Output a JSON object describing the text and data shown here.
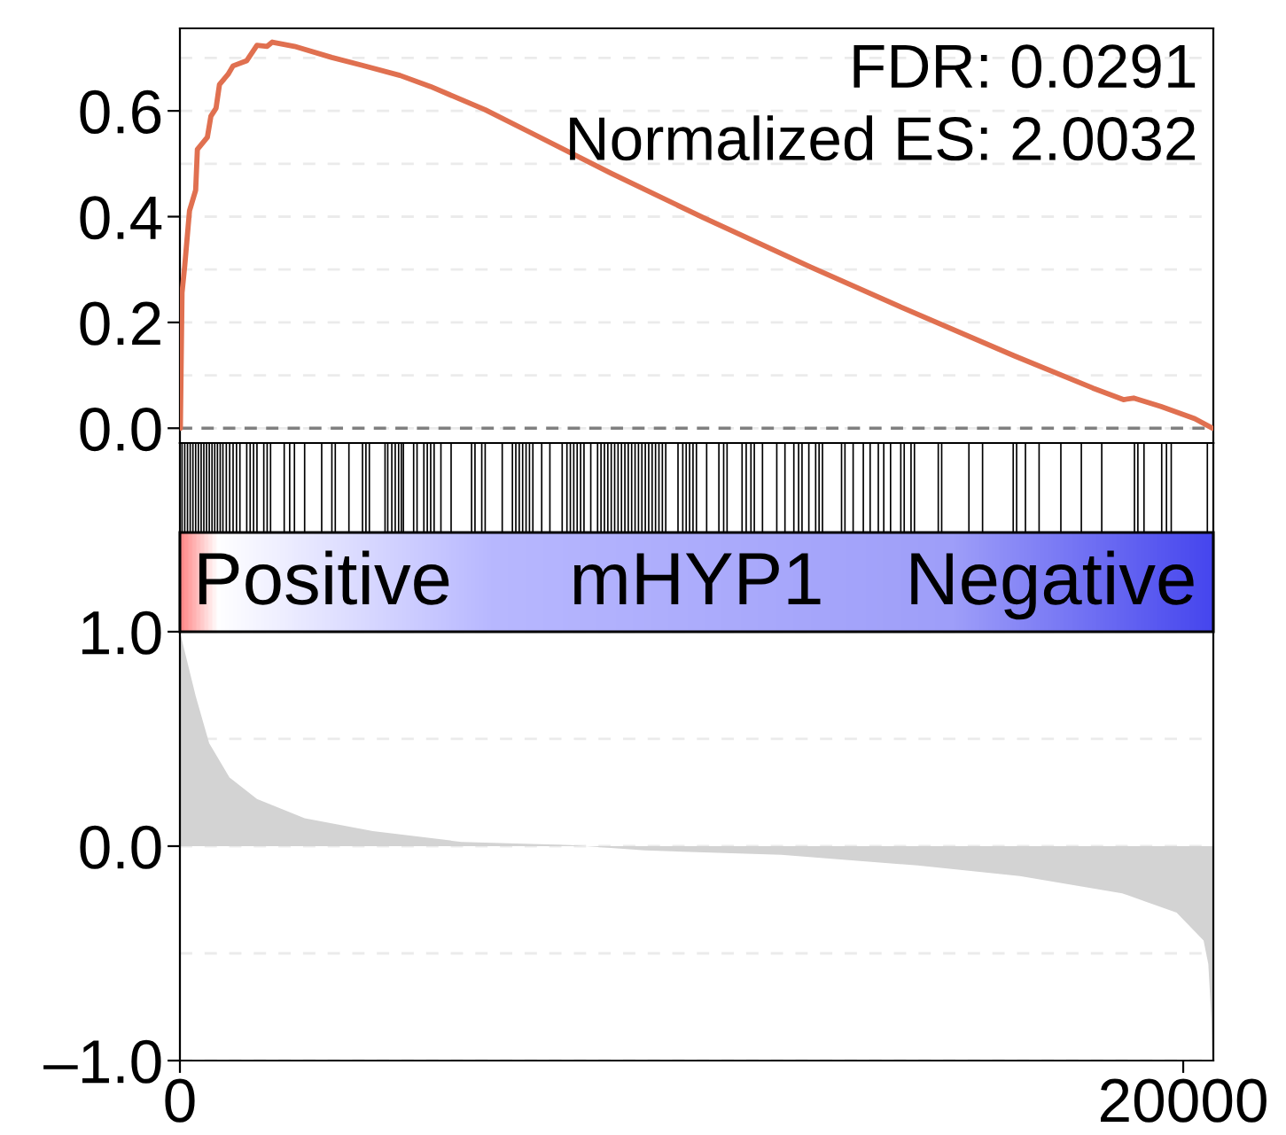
{
  "chart_data": [
    {
      "type": "line",
      "xlim": [
        0,
        20600
      ],
      "ylim": [
        -0.028,
        0.756
      ],
      "yticks": [
        {
          "value": 0,
          "label": "0.0"
        },
        {
          "value": 0.1,
          "label": null
        },
        {
          "value": 0.2,
          "label": "0.2"
        },
        {
          "value": 0.3,
          "label": null
        },
        {
          "value": 0.4,
          "label": "0.4"
        },
        {
          "value": 0.5,
          "label": null
        },
        {
          "value": 0.6,
          "label": "0.6"
        },
        {
          "value": 0.7,
          "label": null
        }
      ],
      "grid": "y",
      "tick_labels": "y",
      "x": [
        0,
        9,
        42,
        97,
        191,
        314,
        348,
        547,
        618,
        720,
        789,
        959,
        1059,
        1333,
        1536,
        1739,
        1841,
        2282,
        3029,
        3636,
        4387,
        4996,
        6085,
        6967,
        8597,
        10415,
        12562,
        14395,
        16628,
        18196,
        18808,
        19011,
        19555,
        20229,
        20580
      ],
      "series": [
        {
          "color": "#e07050",
          "values": [
            0,
            0.0,
            0.256,
            0.308,
            0.411,
            0.45,
            0.527,
            0.55,
            0.59,
            0.605,
            0.65,
            0.669,
            0.685,
            0.695,
            0.724,
            0.722,
            0.73,
            0.722,
            0.701,
            0.686,
            0.667,
            0.646,
            0.602,
            0.56,
            0.482,
            0.399,
            0.305,
            0.228,
            0.137,
            0.076,
            0.054,
            0.057,
            0.041,
            0.018,
            0
          ]
        }
      ],
      "ref_lines": [
        {
          "axis": "y",
          "value": 0,
          "color": "#808080",
          "line_style": "dashed"
        }
      ],
      "annotations": [
        "FDR: 0.0291",
        "Normalized ES: 2.0032"
      ]
    },
    {
      "type": "area",
      "xlim": [
        0,
        20600
      ],
      "ylim": [
        -1,
        1.88
      ],
      "xticks": [
        0,
        20000
      ],
      "yticks": [
        {
          "value": -1,
          "label": "–1.0"
        },
        {
          "value": -0.5,
          "label": null
        },
        {
          "value": 0,
          "label": "0.0"
        },
        {
          "value": 0.5,
          "label": null
        },
        {
          "value": 1,
          "label": "1.0"
        }
      ],
      "grid": "y",
      "x": [
        0,
        314,
        583,
        989,
        1536,
        2486,
        3845,
        5610,
        7785,
        9268,
        11986,
        14704,
        16743,
        18782,
        19868,
        20406,
        20500,
        20560,
        20580
      ],
      "series": [
        {
          "color": "#d3d3d3",
          "values": [
            1.0,
            0.7,
            0.48,
            0.32,
            0.22,
            0.13,
            0.07,
            0.02,
            0.005,
            -0.02,
            -0.04,
            -0.09,
            -0.14,
            -0.22,
            -0.31,
            -0.44,
            -0.55,
            -0.8,
            -0.98
          ]
        }
      ],
      "annotations": [
        "Positive",
        "mHYP1",
        "Negative"
      ],
      "ref_lines": [
        {
          "axis": "x",
          "value": 42
        },
        {
          "axis": "x",
          "value": 96
        },
        {
          "axis": "x",
          "value": 151
        },
        {
          "axis": "x",
          "value": 205
        },
        {
          "axis": "x",
          "value": 259
        },
        {
          "axis": "x",
          "value": 314
        },
        {
          "axis": "x",
          "value": 368
        },
        {
          "axis": "x",
          "value": 423
        },
        {
          "axis": "x",
          "value": 477
        },
        {
          "axis": "x",
          "value": 531
        },
        {
          "axis": "x",
          "value": 585
        },
        {
          "axis": "x",
          "value": 640
        },
        {
          "axis": "x",
          "value": 694
        },
        {
          "axis": "x",
          "value": 748
        },
        {
          "axis": "x",
          "value": 803
        },
        {
          "axis": "x",
          "value": 857
        },
        {
          "axis": "x",
          "value": 925
        },
        {
          "axis": "x",
          "value": 992
        },
        {
          "axis": "x",
          "value": 1060
        },
        {
          "axis": "x",
          "value": 1128
        },
        {
          "axis": "x",
          "value": 1196
        },
        {
          "axis": "x",
          "value": 1332
        },
        {
          "axis": "x",
          "value": 1400
        },
        {
          "axis": "x",
          "value": 1468
        },
        {
          "axis": "x",
          "value": 1536
        },
        {
          "axis": "x",
          "value": 1672
        },
        {
          "axis": "x",
          "value": 1739
        },
        {
          "axis": "x",
          "value": 1807
        },
        {
          "axis": "x",
          "value": 2079
        },
        {
          "axis": "x",
          "value": 2188
        },
        {
          "axis": "x",
          "value": 2283
        },
        {
          "axis": "x",
          "value": 2486
        },
        {
          "axis": "x",
          "value": 2826
        },
        {
          "axis": "x",
          "value": 3029
        },
        {
          "axis": "x",
          "value": 3097
        },
        {
          "axis": "x",
          "value": 3369
        },
        {
          "axis": "x",
          "value": 3640
        },
        {
          "axis": "x",
          "value": 3708
        },
        {
          "axis": "x",
          "value": 3776
        },
        {
          "axis": "x",
          "value": 4089
        },
        {
          "axis": "x",
          "value": 4143
        },
        {
          "axis": "x",
          "value": 4224
        },
        {
          "axis": "x",
          "value": 4292
        },
        {
          "axis": "x",
          "value": 4360
        },
        {
          "axis": "x",
          "value": 4414
        },
        {
          "axis": "x",
          "value": 4455
        },
        {
          "axis": "x",
          "value": 4659
        },
        {
          "axis": "x",
          "value": 4727
        },
        {
          "axis": "x",
          "value": 4863
        },
        {
          "axis": "x",
          "value": 4931
        },
        {
          "axis": "x",
          "value": 4999
        },
        {
          "axis": "x",
          "value": 5067
        },
        {
          "axis": "x",
          "value": 5203
        },
        {
          "axis": "x",
          "value": 5406
        },
        {
          "axis": "x",
          "value": 5814
        },
        {
          "axis": "x",
          "value": 5882
        },
        {
          "axis": "x",
          "value": 6017
        },
        {
          "axis": "x",
          "value": 6085
        },
        {
          "axis": "x",
          "value": 6425
        },
        {
          "axis": "x",
          "value": 6628
        },
        {
          "axis": "x",
          "value": 6696
        },
        {
          "axis": "x",
          "value": 6764
        },
        {
          "axis": "x",
          "value": 6832
        },
        {
          "axis": "x",
          "value": 6900
        },
        {
          "axis": "x",
          "value": 6968
        },
        {
          "axis": "x",
          "value": 7036
        },
        {
          "axis": "x",
          "value": 7212
        },
        {
          "axis": "x",
          "value": 7375
        },
        {
          "axis": "x",
          "value": 7620
        },
        {
          "axis": "x",
          "value": 7715
        },
        {
          "axis": "x",
          "value": 7783
        },
        {
          "axis": "x",
          "value": 7851
        },
        {
          "axis": "x",
          "value": 7919
        },
        {
          "axis": "x",
          "value": 7987
        },
        {
          "axis": "x",
          "value": 8055
        },
        {
          "axis": "x",
          "value": 8190
        },
        {
          "axis": "x",
          "value": 8326
        },
        {
          "axis": "x",
          "value": 8394
        },
        {
          "axis": "x",
          "value": 8462
        },
        {
          "axis": "x",
          "value": 8530
        },
        {
          "axis": "x",
          "value": 8598
        },
        {
          "axis": "x",
          "value": 8666
        },
        {
          "axis": "x",
          "value": 8734
        },
        {
          "axis": "x",
          "value": 8802
        },
        {
          "axis": "x",
          "value": 8870
        },
        {
          "axis": "x",
          "value": 8937
        },
        {
          "axis": "x",
          "value": 9005
        },
        {
          "axis": "x",
          "value": 9073
        },
        {
          "axis": "x",
          "value": 9141
        },
        {
          "axis": "x",
          "value": 9209
        },
        {
          "axis": "x",
          "value": 9277
        },
        {
          "axis": "x",
          "value": 9345
        },
        {
          "axis": "x",
          "value": 9413
        },
        {
          "axis": "x",
          "value": 9481
        },
        {
          "axis": "x",
          "value": 9549
        },
        {
          "axis": "x",
          "value": 9617
        },
        {
          "axis": "x",
          "value": 9685
        },
        {
          "axis": "x",
          "value": 9929
        },
        {
          "axis": "x",
          "value": 10024
        },
        {
          "axis": "x",
          "value": 10092
        },
        {
          "axis": "x",
          "value": 10160
        },
        {
          "axis": "x",
          "value": 10228
        },
        {
          "axis": "x",
          "value": 10296
        },
        {
          "axis": "x",
          "value": 10500
        },
        {
          "axis": "x",
          "value": 10744
        },
        {
          "axis": "x",
          "value": 10839
        },
        {
          "axis": "x",
          "value": 10907
        },
        {
          "axis": "x",
          "value": 11206
        },
        {
          "axis": "x",
          "value": 11288
        },
        {
          "axis": "x",
          "value": 11383
        },
        {
          "axis": "x",
          "value": 11450
        },
        {
          "axis": "x",
          "value": 11613
        },
        {
          "axis": "x",
          "value": 11898
        },
        {
          "axis": "x",
          "value": 12061
        },
        {
          "axis": "x",
          "value": 12238
        },
        {
          "axis": "x",
          "value": 12333
        },
        {
          "axis": "x",
          "value": 12401
        },
        {
          "axis": "x",
          "value": 12537
        },
        {
          "axis": "x",
          "value": 12673
        },
        {
          "axis": "x",
          "value": 12741
        },
        {
          "axis": "x",
          "value": 12809
        },
        {
          "axis": "x",
          "value": 13189
        },
        {
          "axis": "x",
          "value": 13257
        },
        {
          "axis": "x",
          "value": 13420
        },
        {
          "axis": "x",
          "value": 13623
        },
        {
          "axis": "x",
          "value": 13759
        },
        {
          "axis": "x",
          "value": 13922
        },
        {
          "axis": "x",
          "value": 14031
        },
        {
          "axis": "x",
          "value": 14166
        },
        {
          "axis": "x",
          "value": 14370
        },
        {
          "axis": "x",
          "value": 14438
        },
        {
          "axis": "x",
          "value": 14574
        },
        {
          "axis": "x",
          "value": 14642
        },
        {
          "axis": "x",
          "value": 15117
        },
        {
          "axis": "x",
          "value": 15185
        },
        {
          "axis": "x",
          "value": 15728
        },
        {
          "axis": "x",
          "value": 16000
        },
        {
          "axis": "x",
          "value": 16611
        },
        {
          "axis": "x",
          "value": 16679
        },
        {
          "axis": "x",
          "value": 16855
        },
        {
          "axis": "x",
          "value": 17127
        },
        {
          "axis": "x",
          "value": 17561
        },
        {
          "axis": "x",
          "value": 17969
        },
        {
          "axis": "x",
          "value": 18376
        },
        {
          "axis": "x",
          "value": 19028
        },
        {
          "axis": "x",
          "value": 19096
        },
        {
          "axis": "x",
          "value": 19218
        },
        {
          "axis": "x",
          "value": 19571
        },
        {
          "axis": "x",
          "value": 19666
        },
        {
          "axis": "x",
          "value": 19761
        },
        {
          "axis": "x",
          "value": 20481
        }
      ]
    }
  ]
}
